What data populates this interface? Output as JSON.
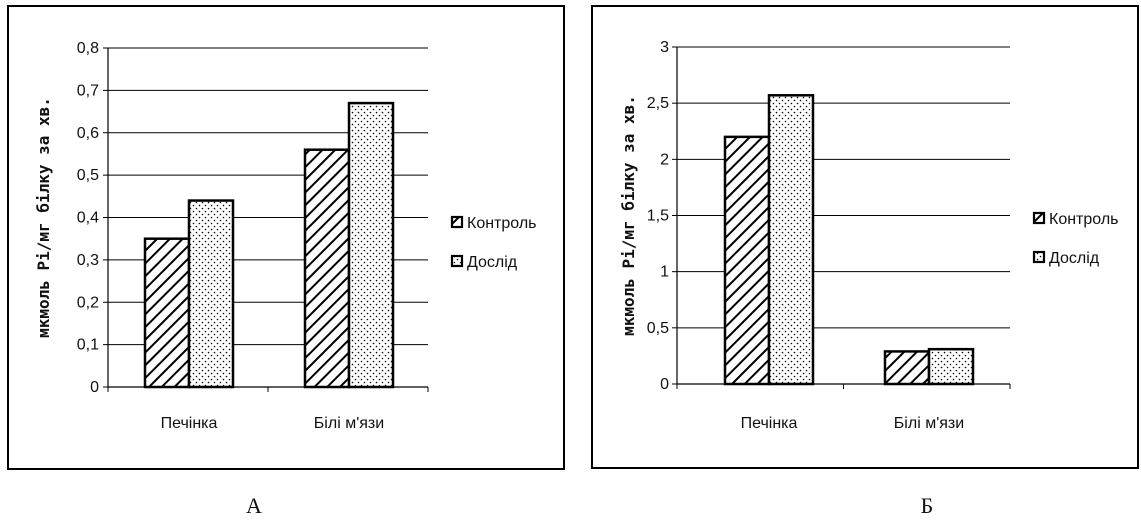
{
  "chart_data": [
    {
      "type": "bar",
      "panel_label": "А",
      "categories": [
        "Печінка",
        "Білі м'язи"
      ],
      "series": [
        {
          "name": "Контроль",
          "values": [
            0.35,
            0.56
          ],
          "pattern": "diagonal-hatch"
        },
        {
          "name": "Дослід",
          "values": [
            0.44,
            0.67
          ],
          "pattern": "dots"
        }
      ],
      "ylabel": "мкмоль Рі/мг білку за хв.",
      "ylim": [
        0,
        0.8
      ],
      "yticks": [
        "0",
        "0,1",
        "0,2",
        "0,3",
        "0,4",
        "0,5",
        "0,6",
        "0,7",
        "0,8"
      ],
      "grid": true,
      "legend": "right"
    },
    {
      "type": "bar",
      "panel_label": "Б",
      "categories": [
        "Печінка",
        "Білі м'язи"
      ],
      "series": [
        {
          "name": "Контроль",
          "values": [
            2.2,
            0.29
          ],
          "pattern": "diagonal-hatch"
        },
        {
          "name": "Дослід",
          "values": [
            2.57,
            0.31
          ],
          "pattern": "dots"
        }
      ],
      "ylabel": "мкмоль Рі/мг білку за хв.",
      "ylim": [
        0,
        3
      ],
      "yticks": [
        "0",
        "0,5",
        "1",
        "1,5",
        "2",
        "2,5",
        "3"
      ],
      "grid": true,
      "legend": "right"
    }
  ],
  "colors": {
    "bar_fill": "#ffffff",
    "bar_stroke": "#000000",
    "grid": "#000000",
    "frame": "#000000"
  }
}
